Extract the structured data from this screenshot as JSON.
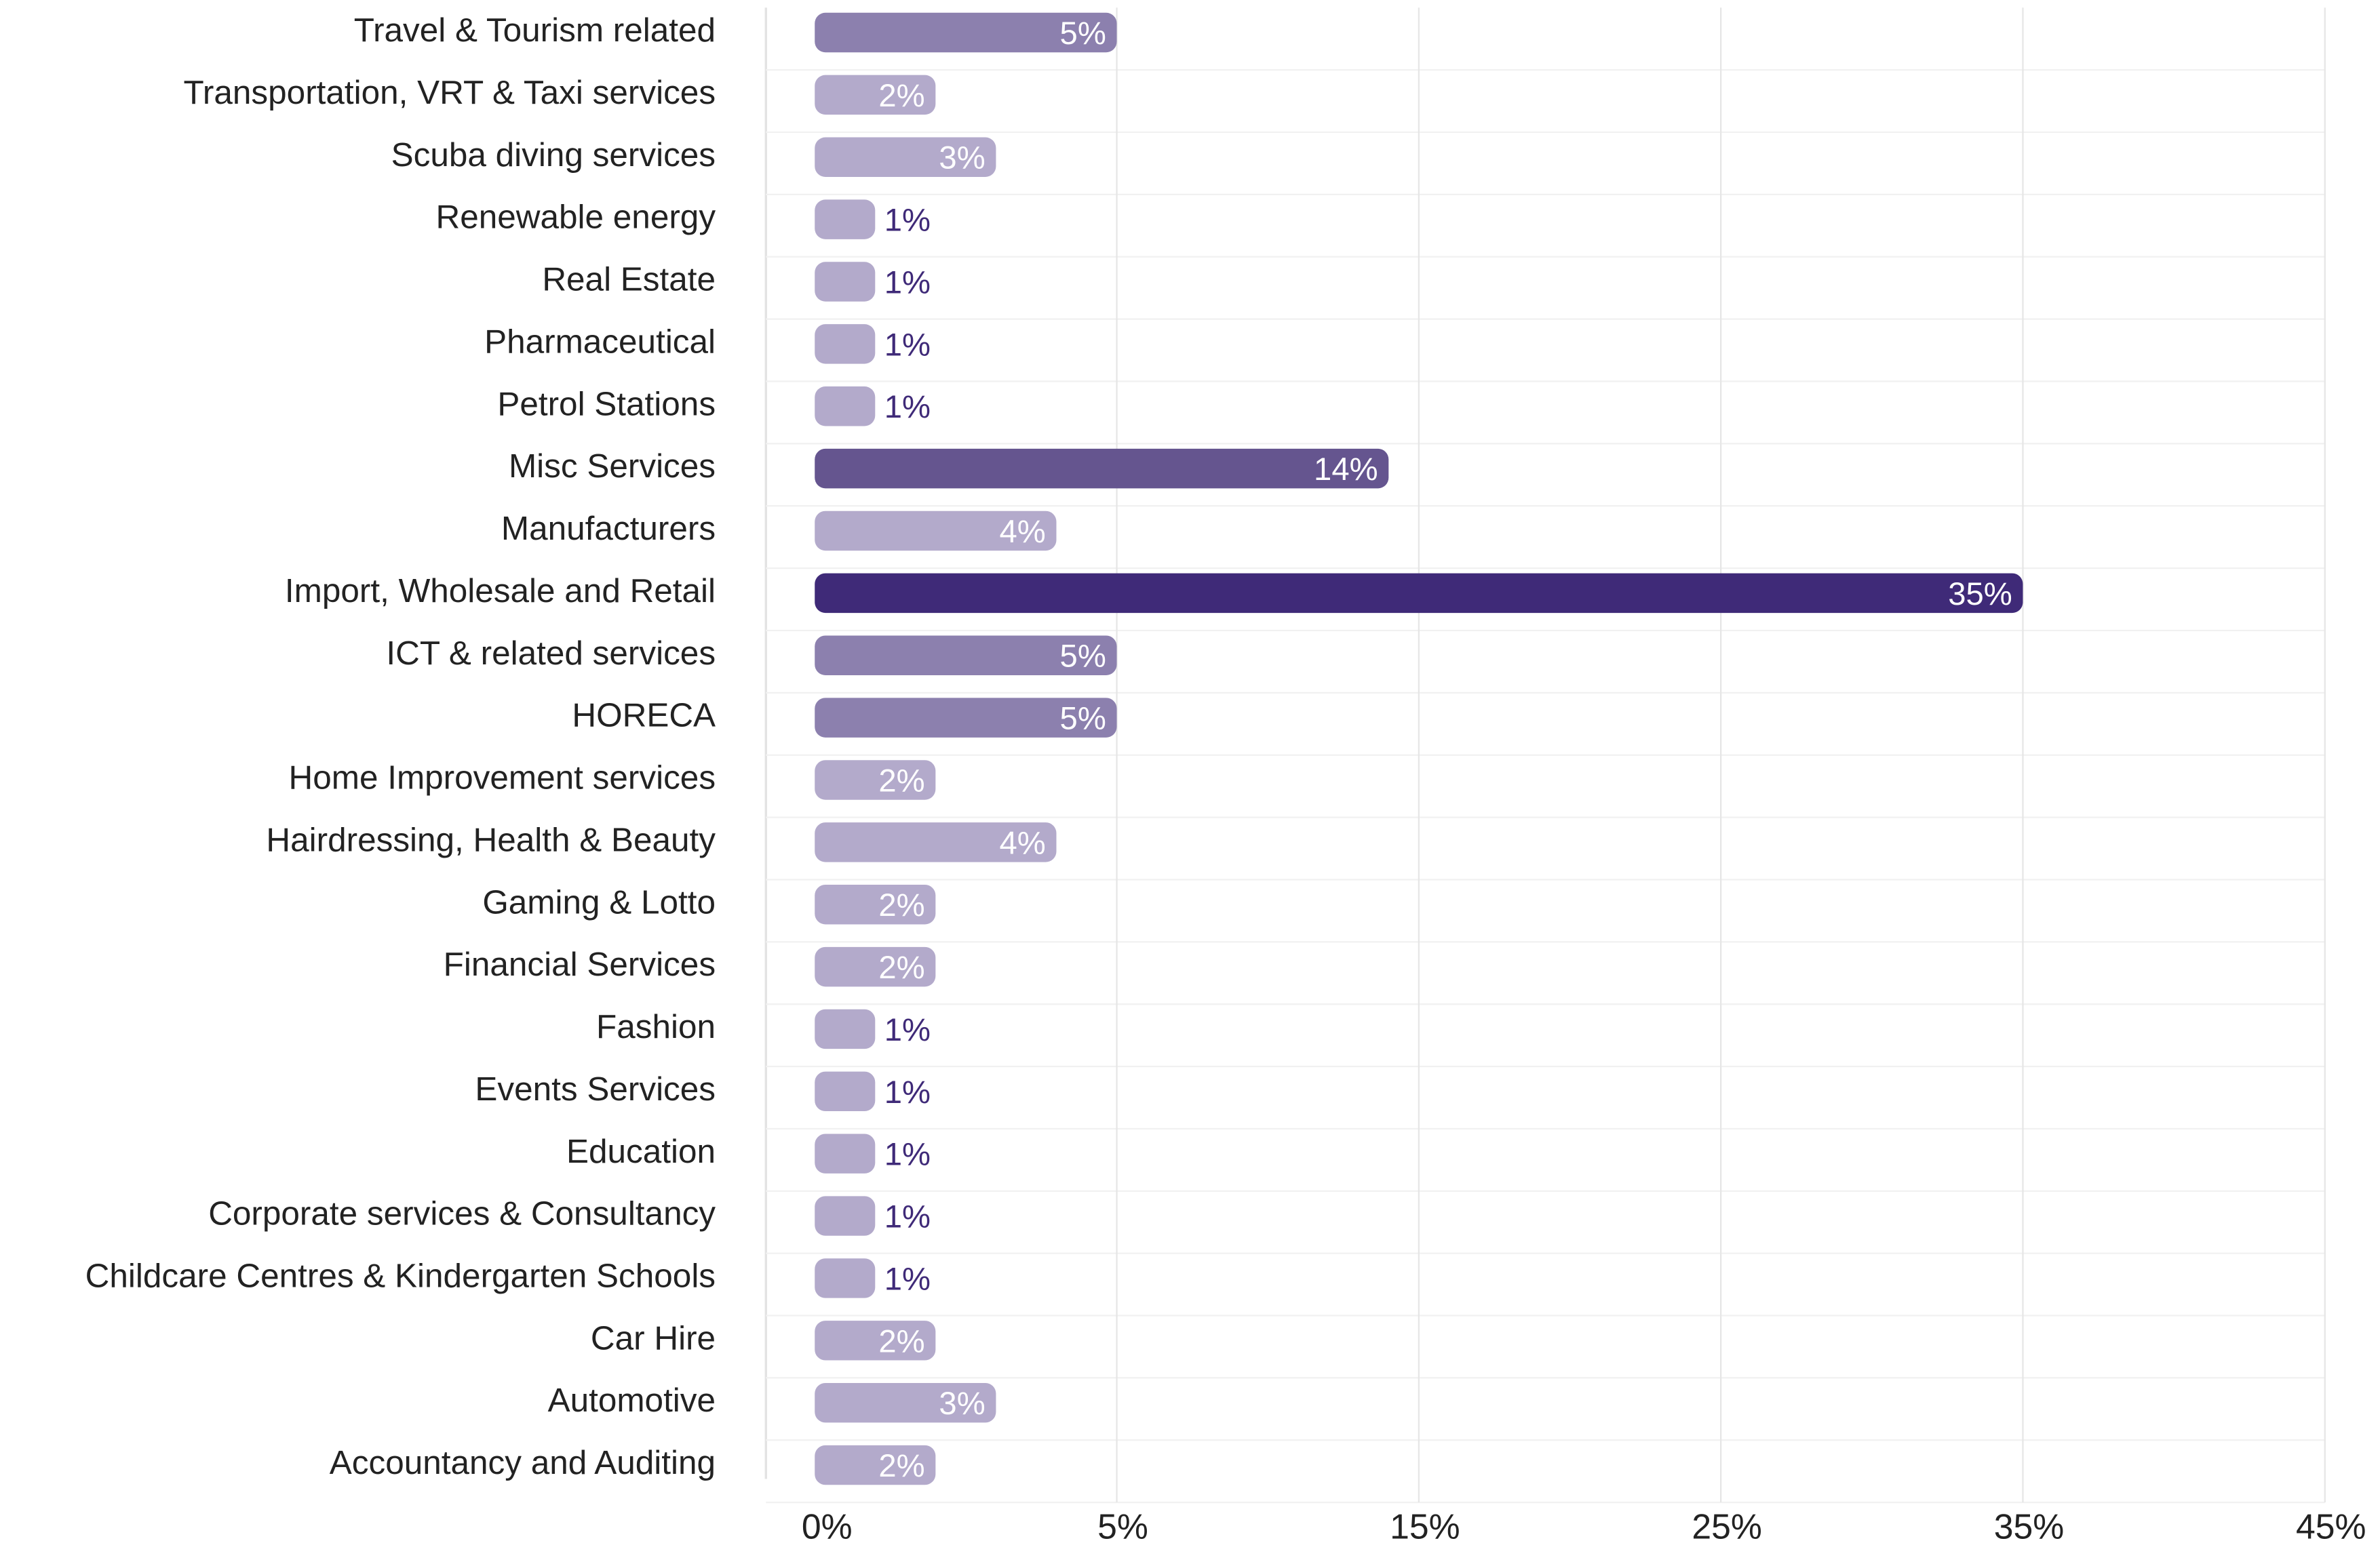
{
  "chart_data": {
    "type": "barh",
    "categories": [
      "Travel & Tourism related",
      "Transportation, VRT & Taxi services",
      "Scuba diving services",
      "Renewable energy",
      "Real Estate",
      "Pharmaceutical",
      "Petrol Stations",
      "Misc Services",
      "Manufacturers",
      "Import, Wholesale and Retail",
      "ICT & related services",
      "HORECA",
      "Home Improvement services",
      "Hairdressing, Health & Beauty",
      "Gaming & Lotto",
      "Financial Services",
      "Fashion",
      "Events Services",
      "Education",
      "Corporate services & Consultancy",
      "Childcare Centres & Kindergarten Schools",
      "Car Hire",
      "Automotive",
      "Accountancy and Auditing"
    ],
    "values": [
      5,
      2,
      3,
      1,
      1,
      1,
      1,
      14,
      4,
      35,
      5,
      5,
      2,
      4,
      2,
      2,
      1,
      1,
      1,
      1,
      1,
      2,
      3,
      2
    ],
    "value_labels": [
      "5%",
      "2%",
      "3%",
      "1%",
      "1%",
      "1%",
      "1%",
      "14%",
      "4%",
      "35%",
      "5%",
      "5%",
      "2%",
      "4%",
      "2%",
      "2%",
      "1%",
      "1%",
      "1%",
      "1%",
      "1%",
      "2%",
      "3%",
      "2%"
    ],
    "colors": [
      "#8c80ae",
      "#b3aacb",
      "#b3aacb",
      "#b3aacb",
      "#b3aacb",
      "#b3aacb",
      "#b3aacb",
      "#65558f",
      "#b3aacb",
      "#3f2a78",
      "#8c80ae",
      "#8c80ae",
      "#b3aacb",
      "#b3aacb",
      "#b3aacb",
      "#b3aacb",
      "#b3aacb",
      "#b3aacb",
      "#b3aacb",
      "#b3aacb",
      "#b3aacb",
      "#b3aacb",
      "#b3aacb",
      "#b3aacb"
    ],
    "xlim": [
      0,
      45
    ],
    "xticks": [
      {
        "value": 0,
        "label": "0%"
      },
      {
        "value": 5,
        "label": "5%"
      },
      {
        "value": 15,
        "label": "15%"
      },
      {
        "value": 25,
        "label": "25%"
      },
      {
        "value": 35,
        "label": "35%"
      },
      {
        "value": 45,
        "label": "45%"
      }
    ],
    "grid": true
  }
}
